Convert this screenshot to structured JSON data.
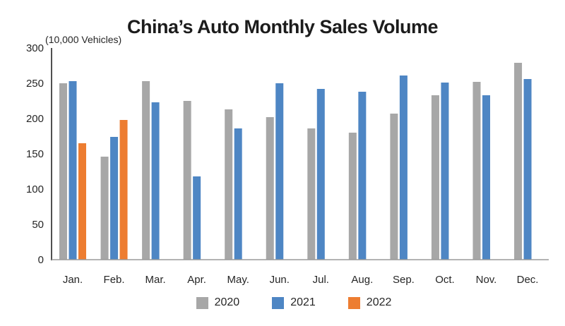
{
  "title": "China’s Auto Monthly Sales Volume",
  "unit_label": "(10,000 Vehicles)",
  "chart_data": {
    "type": "bar",
    "title": "China’s Auto Monthly Sales Volume",
    "ylabel": "(10,000 Vehicles)",
    "xlabel": "",
    "categories": [
      "Jan.",
      "Feb.",
      "Mar.",
      "Apr.",
      "May.",
      "Jun.",
      "Jul.",
      "Aug.",
      "Sep.",
      "Oct.",
      "Nov.",
      "Dec."
    ],
    "series": [
      {
        "name": "2020",
        "color": "#A7A7A7",
        "values": [
          250,
          146,
          253,
          225,
          213,
          202,
          186,
          180,
          207,
          233,
          252,
          279
        ]
      },
      {
        "name": "2021",
        "color": "#4E86C4",
        "values": [
          253,
          174,
          223,
          118,
          186,
          250,
          242,
          238,
          261,
          251,
          233,
          256
        ]
      },
      {
        "name": "2022",
        "color": "#ED7D31",
        "values": [
          165,
          198,
          null,
          null,
          null,
          null,
          null,
          null,
          null,
          null,
          null,
          null
        ]
      }
    ],
    "ylim": [
      0,
      300
    ],
    "yticks": [
      0,
      50,
      100,
      150,
      200,
      250,
      300
    ],
    "grid": false,
    "legend_position": "bottom",
    "axis_color": "#3d3d3d",
    "baseline_color": "#9a9a9a"
  }
}
